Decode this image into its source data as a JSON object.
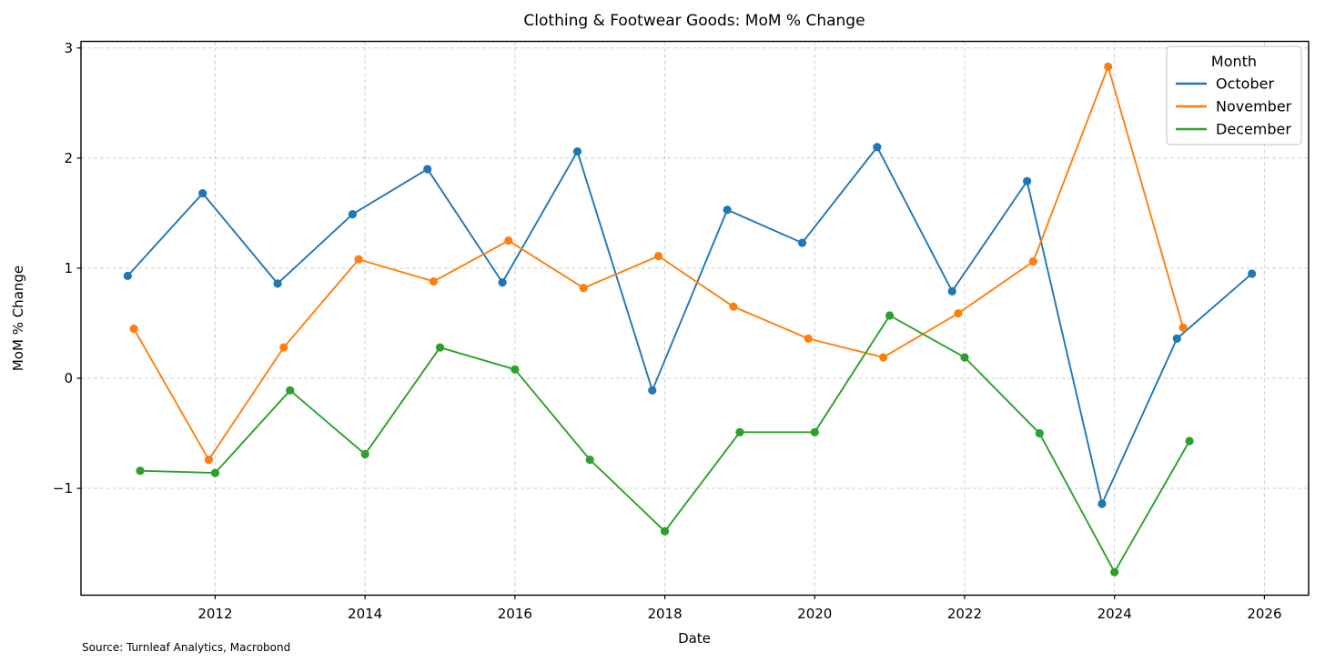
{
  "title": "Clothing & Footwear Goods: MoM % Change",
  "source_note": "Source: Turnleaf Analytics, Macrobond",
  "chart_data": {
    "type": "line",
    "title": "Clothing & Footwear Goods: MoM % Change",
    "xlabel": "Date",
    "ylabel": "MoM % Change",
    "xlim": [
      2010.21,
      2026.59
    ],
    "ylim": [
      -1.97,
      3.06
    ],
    "x_ticks": [
      2012,
      2014,
      2016,
      2018,
      2020,
      2022,
      2024,
      2026
    ],
    "y_ticks": [
      3,
      2,
      1,
      0,
      -1
    ],
    "grid": true,
    "grid_style": "dashed",
    "grid_color": "#cfcfcf",
    "legend": {
      "title": "Month",
      "position": "top-right",
      "entries": [
        "October",
        "November",
        "December"
      ]
    },
    "series": [
      {
        "name": "October",
        "color": "#1f77b4",
        "month_offset": 0.833,
        "years": [
          2010,
          2011,
          2012,
          2013,
          2014,
          2015,
          2016,
          2017,
          2018,
          2019,
          2020,
          2021,
          2022,
          2023,
          2024,
          2025
        ],
        "values": [
          0.93,
          1.68,
          0.86,
          1.49,
          1.9,
          0.87,
          2.06,
          -0.11,
          1.53,
          1.23,
          2.1,
          0.79,
          1.79,
          -1.14,
          0.36,
          0.95
        ]
      },
      {
        "name": "November",
        "color": "#ff7f0e",
        "month_offset": 0.915,
        "years": [
          2010,
          2011,
          2012,
          2013,
          2014,
          2015,
          2016,
          2017,
          2018,
          2019,
          2020,
          2021,
          2022,
          2023,
          2024
        ],
        "values": [
          0.45,
          -0.74,
          0.28,
          1.08,
          0.88,
          1.25,
          0.82,
          1.11,
          0.65,
          0.36,
          0.19,
          0.59,
          1.06,
          2.83,
          0.46
        ]
      },
      {
        "name": "December",
        "color": "#2ca02c",
        "month_offset": 1.0,
        "years": [
          2010,
          2011,
          2012,
          2013,
          2014,
          2015,
          2016,
          2017,
          2018,
          2019,
          2020,
          2021,
          2022,
          2023,
          2024
        ],
        "values": [
          -0.84,
          -0.86,
          -0.11,
          -0.69,
          0.28,
          0.08,
          -0.74,
          -1.39,
          -0.49,
          -0.49,
          0.57,
          0.19,
          -0.5,
          -1.76,
          -0.57
        ]
      }
    ]
  }
}
